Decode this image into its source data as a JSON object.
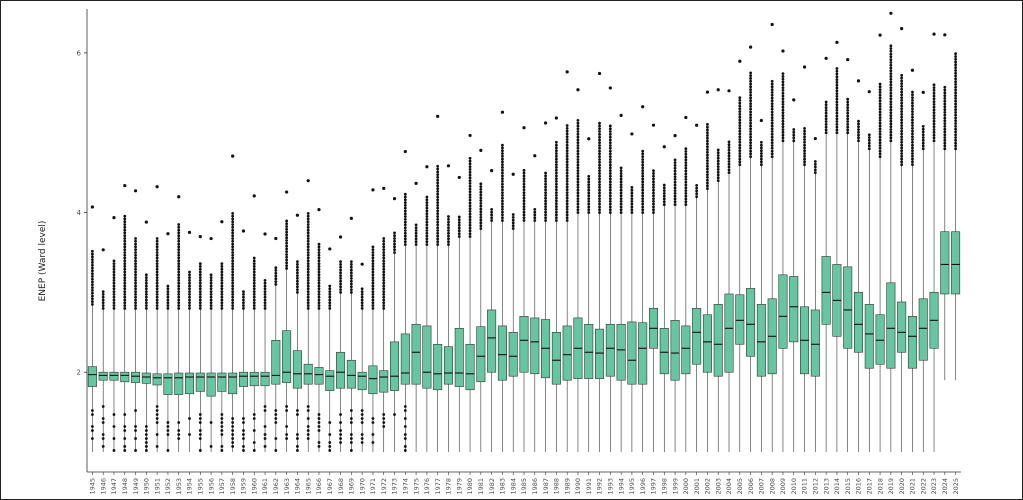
{
  "chart_data": {
    "type": "boxplot",
    "title": "",
    "xlabel": "",
    "ylabel": "ENEP (Ward level)",
    "ylim": [
      0.75,
      6.55
    ],
    "yticks": [
      2,
      4,
      6
    ],
    "grid": false,
    "legend": "none",
    "colors": {
      "box_fill": "#66c6a1",
      "box_stroke": "#333333",
      "outlier": "#111111",
      "axis": "#333333"
    },
    "categories": [
      "1945",
      "1946",
      "1947",
      "1948",
      "1949",
      "1950",
      "1951",
      "1952",
      "1953",
      "1954",
      "1955",
      "1956",
      "1957",
      "1958",
      "1959",
      "1960",
      "1961",
      "1962",
      "1963",
      "1964",
      "1965",
      "1966",
      "1967",
      "1968",
      "1969",
      "1970",
      "1971",
      "1972",
      "1973",
      "1974",
      "1975",
      "1976",
      "1977",
      "1978",
      "1979",
      "1980",
      "1981",
      "1982",
      "1983",
      "1984",
      "1985",
      "1986",
      "1987",
      "1988",
      "1989",
      "1990",
      "1991",
      "1992",
      "1993",
      "1994",
      "1995",
      "1996",
      "1997",
      "1998",
      "1999",
      "2000",
      "2001",
      "2002",
      "2003",
      "2004",
      "2005",
      "2006",
      "2007",
      "2008",
      "2009",
      "2010",
      "2011",
      "2012",
      "2013",
      "2014",
      "2015",
      "2016",
      "2017",
      "2018",
      "2019",
      "2020",
      "2021",
      "2022",
      "2023",
      "2024",
      "2025"
    ],
    "boxes": [
      {
        "q1": 1.82,
        "med": 1.97,
        "q3": 2.07,
        "wlo": 1.0,
        "whi": 2.85
      },
      {
        "q1": 1.9,
        "med": 1.96,
        "q3": 2.0,
        "wlo": 1.0,
        "whi": 2.8
      },
      {
        "q1": 1.9,
        "med": 1.96,
        "q3": 2.0,
        "wlo": 1.0,
        "whi": 2.8
      },
      {
        "q1": 1.88,
        "med": 1.96,
        "q3": 2.0,
        "wlo": 1.0,
        "whi": 2.8
      },
      {
        "q1": 1.87,
        "med": 1.95,
        "q3": 2.0,
        "wlo": 1.0,
        "whi": 2.8
      },
      {
        "q1": 1.86,
        "med": 1.94,
        "q3": 1.99,
        "wlo": 1.0,
        "whi": 2.8
      },
      {
        "q1": 1.84,
        "med": 1.93,
        "q3": 1.98,
        "wlo": 1.0,
        "whi": 2.8
      },
      {
        "q1": 1.72,
        "med": 1.93,
        "q3": 1.98,
        "wlo": 1.0,
        "whi": 2.8
      },
      {
        "q1": 1.72,
        "med": 1.93,
        "q3": 1.99,
        "wlo": 1.0,
        "whi": 2.8
      },
      {
        "q1": 1.73,
        "med": 1.94,
        "q3": 1.99,
        "wlo": 1.0,
        "whi": 2.8
      },
      {
        "q1": 1.76,
        "med": 1.94,
        "q3": 1.99,
        "wlo": 1.0,
        "whi": 2.8
      },
      {
        "q1": 1.7,
        "med": 1.94,
        "q3": 1.99,
        "wlo": 1.0,
        "whi": 2.8
      },
      {
        "q1": 1.76,
        "med": 1.94,
        "q3": 1.99,
        "wlo": 1.0,
        "whi": 2.8
      },
      {
        "q1": 1.73,
        "med": 1.94,
        "q3": 1.99,
        "wlo": 1.0,
        "whi": 2.8
      },
      {
        "q1": 1.82,
        "med": 1.95,
        "q3": 2.0,
        "wlo": 1.0,
        "whi": 2.8
      },
      {
        "q1": 1.83,
        "med": 1.95,
        "q3": 2.0,
        "wlo": 1.0,
        "whi": 2.8
      },
      {
        "q1": 1.83,
        "med": 1.95,
        "q3": 2.0,
        "wlo": 1.0,
        "whi": 2.8
      },
      {
        "q1": 1.85,
        "med": 1.96,
        "q3": 2.4,
        "wlo": 1.0,
        "whi": 3.1
      },
      {
        "q1": 1.87,
        "med": 2.0,
        "q3": 2.52,
        "wlo": 1.0,
        "whi": 3.3
      },
      {
        "q1": 1.8,
        "med": 1.98,
        "q3": 2.27,
        "wlo": 1.0,
        "whi": 3.0
      },
      {
        "q1": 1.85,
        "med": 1.98,
        "q3": 2.1,
        "wlo": 1.0,
        "whi": 2.8
      },
      {
        "q1": 1.85,
        "med": 1.97,
        "q3": 2.06,
        "wlo": 1.0,
        "whi": 2.8
      },
      {
        "q1": 1.77,
        "med": 1.95,
        "q3": 2.02,
        "wlo": 1.0,
        "whi": 2.8
      },
      {
        "q1": 1.8,
        "med": 2.0,
        "q3": 2.25,
        "wlo": 1.0,
        "whi": 3.0
      },
      {
        "q1": 1.8,
        "med": 1.96,
        "q3": 2.15,
        "wlo": 1.0,
        "whi": 3.0
      },
      {
        "q1": 1.78,
        "med": 1.95,
        "q3": 2.0,
        "wlo": 1.0,
        "whi": 2.8
      },
      {
        "q1": 1.73,
        "med": 1.92,
        "q3": 2.08,
        "wlo": 1.0,
        "whi": 2.8
      },
      {
        "q1": 1.75,
        "med": 1.94,
        "q3": 2.02,
        "wlo": 1.0,
        "whi": 2.8
      },
      {
        "q1": 1.77,
        "med": 1.95,
        "q3": 2.38,
        "wlo": 1.0,
        "whi": 3.5
      },
      {
        "q1": 1.85,
        "med": 1.99,
        "q3": 2.48,
        "wlo": 1.0,
        "whi": 3.6
      },
      {
        "q1": 1.85,
        "med": 2.25,
        "q3": 2.6,
        "wlo": 1.0,
        "whi": 3.6
      },
      {
        "q1": 1.8,
        "med": 2.0,
        "q3": 2.58,
        "wlo": 1.0,
        "whi": 3.6
      },
      {
        "q1": 1.78,
        "med": 1.98,
        "q3": 2.35,
        "wlo": 1.0,
        "whi": 3.6
      },
      {
        "q1": 1.85,
        "med": 1.99,
        "q3": 2.32,
        "wlo": 1.0,
        "whi": 3.6
      },
      {
        "q1": 1.82,
        "med": 1.99,
        "q3": 2.55,
        "wlo": 1.0,
        "whi": 3.7
      },
      {
        "q1": 1.78,
        "med": 1.98,
        "q3": 2.35,
        "wlo": 1.0,
        "whi": 3.7
      },
      {
        "q1": 1.88,
        "med": 2.2,
        "q3": 2.57,
        "wlo": 1.0,
        "whi": 3.8
      },
      {
        "q1": 2.0,
        "med": 2.43,
        "q3": 2.78,
        "wlo": 1.0,
        "whi": 3.9
      },
      {
        "q1": 1.9,
        "med": 2.22,
        "q3": 2.58,
        "wlo": 1.0,
        "whi": 3.9
      },
      {
        "q1": 1.95,
        "med": 2.2,
        "q3": 2.5,
        "wlo": 1.0,
        "whi": 3.8
      },
      {
        "q1": 2.0,
        "med": 2.4,
        "q3": 2.7,
        "wlo": 1.0,
        "whi": 3.9
      },
      {
        "q1": 1.98,
        "med": 2.38,
        "q3": 2.68,
        "wlo": 1.0,
        "whi": 3.9
      },
      {
        "q1": 1.93,
        "med": 2.3,
        "q3": 2.66,
        "wlo": 1.0,
        "whi": 3.9
      },
      {
        "q1": 1.85,
        "med": 2.15,
        "q3": 2.5,
        "wlo": 1.0,
        "whi": 3.9
      },
      {
        "q1": 1.9,
        "med": 2.22,
        "q3": 2.58,
        "wlo": 1.0,
        "whi": 3.9
      },
      {
        "q1": 1.92,
        "med": 2.3,
        "q3": 2.68,
        "wlo": 1.0,
        "whi": 4.0
      },
      {
        "q1": 1.92,
        "med": 2.25,
        "q3": 2.6,
        "wlo": 1.0,
        "whi": 4.0
      },
      {
        "q1": 1.92,
        "med": 2.24,
        "q3": 2.54,
        "wlo": 1.0,
        "whi": 4.0
      },
      {
        "q1": 1.95,
        "med": 2.3,
        "q3": 2.6,
        "wlo": 1.0,
        "whi": 4.0
      },
      {
        "q1": 1.9,
        "med": 2.28,
        "q3": 2.6,
        "wlo": 1.0,
        "whi": 4.0
      },
      {
        "q1": 1.85,
        "med": 2.15,
        "q3": 2.63,
        "wlo": 1.0,
        "whi": 4.0
      },
      {
        "q1": 1.85,
        "med": 2.3,
        "q3": 2.62,
        "wlo": 1.0,
        "whi": 4.0
      },
      {
        "q1": 2.3,
        "med": 2.55,
        "q3": 2.8,
        "wlo": 1.0,
        "whi": 4.0
      },
      {
        "q1": 1.98,
        "med": 2.25,
        "q3": 2.55,
        "wlo": 1.0,
        "whi": 4.1
      },
      {
        "q1": 1.9,
        "med": 2.24,
        "q3": 2.65,
        "wlo": 1.0,
        "whi": 4.1
      },
      {
        "q1": 1.98,
        "med": 2.3,
        "q3": 2.58,
        "wlo": 1.0,
        "whi": 4.1
      },
      {
        "q1": 2.1,
        "med": 2.5,
        "q3": 2.8,
        "wlo": 1.0,
        "whi": 4.2
      },
      {
        "q1": 2.0,
        "med": 2.38,
        "q3": 2.72,
        "wlo": 1.0,
        "whi": 4.3
      },
      {
        "q1": 1.95,
        "med": 2.35,
        "q3": 2.85,
        "wlo": 1.0,
        "whi": 4.4
      },
      {
        "q1": 2.0,
        "med": 2.55,
        "q3": 2.98,
        "wlo": 1.0,
        "whi": 4.5
      },
      {
        "q1": 2.35,
        "med": 2.65,
        "q3": 2.97,
        "wlo": 1.0,
        "whi": 4.6
      },
      {
        "q1": 2.2,
        "med": 2.6,
        "q3": 3.05,
        "wlo": 1.0,
        "whi": 4.7
      },
      {
        "q1": 1.95,
        "med": 2.38,
        "q3": 2.85,
        "wlo": 1.0,
        "whi": 4.6
      },
      {
        "q1": 1.98,
        "med": 2.45,
        "q3": 2.92,
        "wlo": 1.0,
        "whi": 4.7
      },
      {
        "q1": 2.3,
        "med": 2.7,
        "q3": 3.22,
        "wlo": 1.0,
        "whi": 4.9
      },
      {
        "q1": 2.38,
        "med": 2.82,
        "q3": 3.2,
        "wlo": 1.0,
        "whi": 4.9
      },
      {
        "q1": 1.98,
        "med": 2.4,
        "q3": 2.82,
        "wlo": 1.0,
        "whi": 4.6
      },
      {
        "q1": 1.95,
        "med": 2.35,
        "q3": 2.78,
        "wlo": 1.0,
        "whi": 4.5
      },
      {
        "q1": 2.6,
        "med": 3.0,
        "q3": 3.45,
        "wlo": 1.0,
        "whi": 5.0
      },
      {
        "q1": 2.45,
        "med": 2.9,
        "q3": 3.35,
        "wlo": 1.0,
        "whi": 5.0
      },
      {
        "q1": 2.3,
        "med": 2.78,
        "q3": 3.32,
        "wlo": 1.0,
        "whi": 5.0
      },
      {
        "q1": 2.25,
        "med": 2.6,
        "q3": 3.0,
        "wlo": 1.0,
        "whi": 4.9
      },
      {
        "q1": 2.05,
        "med": 2.48,
        "q3": 2.85,
        "wlo": 1.0,
        "whi": 4.8
      },
      {
        "q1": 2.1,
        "med": 2.4,
        "q3": 2.72,
        "wlo": 1.0,
        "whi": 4.7
      },
      {
        "q1": 2.05,
        "med": 2.55,
        "q3": 3.12,
        "wlo": 1.0,
        "whi": 4.9
      },
      {
        "q1": 2.25,
        "med": 2.5,
        "q3": 2.88,
        "wlo": 1.0,
        "whi": 4.6
      },
      {
        "q1": 2.05,
        "med": 2.45,
        "q3": 2.7,
        "wlo": 1.0,
        "whi": 4.6
      },
      {
        "q1": 2.15,
        "med": 2.55,
        "q3": 2.92,
        "wlo": 1.0,
        "whi": 4.8
      },
      {
        "q1": 2.3,
        "med": 2.65,
        "q3": 3.0,
        "wlo": 1.0,
        "whi": 4.9
      },
      {
        "q1": 2.98,
        "med": 3.35,
        "q3": 3.76,
        "wlo": 1.9,
        "whi": 4.8
      },
      {
        "q1": 2.98,
        "med": 3.35,
        "q3": 3.76,
        "wlo": 1.9,
        "whi": 4.8
      }
    ]
  }
}
